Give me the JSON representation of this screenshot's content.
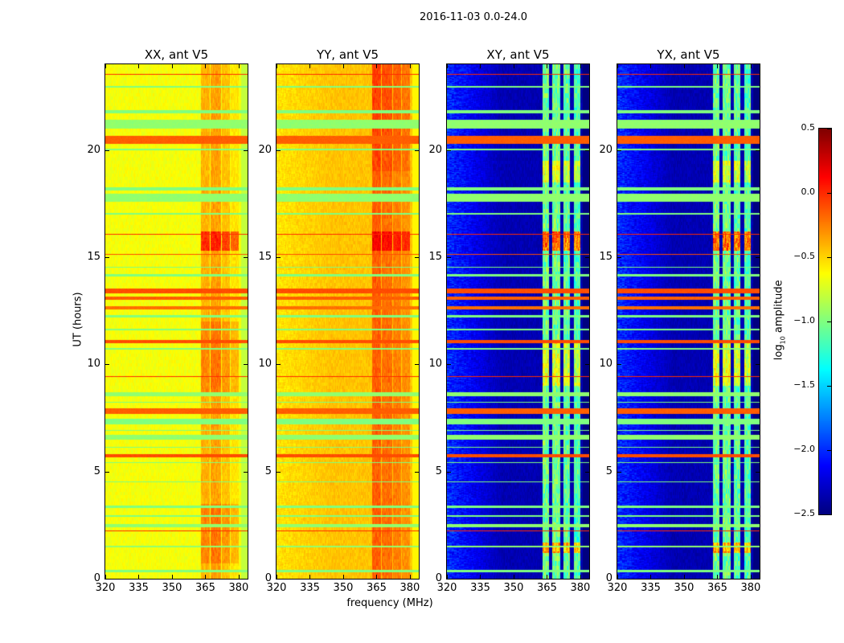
{
  "chart_data": {
    "type": "heatmap",
    "title": "2016-11-03 0.0-24.0",
    "xlabel": "frequency (MHz)",
    "ylabel": "UT (hours)",
    "xlim": [
      320,
      384
    ],
    "ylim": [
      0,
      24
    ],
    "xticks": [
      "320",
      "335",
      "350",
      "365",
      "380"
    ],
    "yticks": [
      "0",
      "5",
      "10",
      "15",
      "20"
    ],
    "colorbar": {
      "label_main": "log",
      "label_sub": "10",
      "label_rest": " amplitude",
      "colormap": "jet",
      "range": [
        -2.5,
        0.5
      ],
      "ticks": [
        "0.5",
        "0.0",
        "−0.5",
        "−1.0",
        "−1.5",
        "−2.0",
        "−2.5"
      ]
    },
    "panels": [
      {
        "title": "XX, ant V5",
        "base_log_amp": -0.65,
        "left_gradient": 0.0,
        "channels": [
          [
            363,
            367,
            0.25
          ],
          [
            367.5,
            372,
            0.3
          ],
          [
            372.5,
            376,
            0.2
          ],
          [
            376.5,
            380,
            0.1
          ]
        ],
        "hot_hours": [
          [
            15.3,
            16.2,
            0.45
          ],
          [
            0.7,
            3.5,
            0.15
          ],
          [
            8.5,
            12,
            0.15
          ]
        ]
      },
      {
        "title": "YY, ant V5",
        "base_log_amp": -0.45,
        "left_gradient": -0.1,
        "channels": [
          [
            363,
            367,
            0.3
          ],
          [
            367.5,
            372,
            0.25
          ],
          [
            372.5,
            376,
            0.2
          ],
          [
            376.5,
            380,
            0.15
          ]
        ],
        "hot_hours": [
          [
            15.3,
            16.2,
            0.35
          ],
          [
            19,
            24,
            0.1
          ]
        ]
      },
      {
        "title": "XY, ant V5",
        "base_log_amp": -2.35,
        "left_gradient": 0.35,
        "channels": [
          [
            363,
            366,
            1.3
          ],
          [
            367.5,
            371,
            1.3
          ],
          [
            372.5,
            375.5,
            1.25
          ],
          [
            377,
            380,
            1.2
          ]
        ],
        "hot_hours": [
          [
            15.3,
            16.2,
            1.0
          ],
          [
            1.2,
            1.7,
            0.8
          ],
          [
            9,
            11,
            0.4
          ],
          [
            18.5,
            19.5,
            0.4
          ]
        ]
      },
      {
        "title": "YX, ant V5",
        "base_log_amp": -2.35,
        "left_gradient": 0.35,
        "channels": [
          [
            363,
            366,
            1.3
          ],
          [
            367.5,
            371,
            1.3
          ],
          [
            372.5,
            375.5,
            1.25
          ],
          [
            377,
            380,
            1.2
          ]
        ],
        "hot_hours": [
          [
            15.3,
            16.2,
            1.0
          ],
          [
            1.2,
            1.7,
            0.8
          ],
          [
            9,
            11,
            0.4
          ],
          [
            18.5,
            19.5,
            0.4
          ]
        ]
      }
    ],
    "flagged_rows_hours_log_amp": [
      [
        23.5,
        23.55,
        0.0
      ],
      [
        22.9,
        23.0,
        -1.0
      ],
      [
        21.7,
        21.85,
        -1.0
      ],
      [
        21.0,
        21.4,
        -0.95
      ],
      [
        20.3,
        20.65,
        -0.15
      ],
      [
        20.0,
        20.08,
        -1.0
      ],
      [
        18.1,
        18.25,
        -1.0
      ],
      [
        17.6,
        17.95,
        -0.95
      ],
      [
        17.0,
        17.05,
        -1.0
      ],
      [
        16.05,
        16.1,
        0.0
      ],
      [
        15.1,
        15.15,
        -0.1
      ],
      [
        14.5,
        14.55,
        -1.0
      ],
      [
        14.1,
        14.2,
        -1.0
      ],
      [
        13.3,
        13.55,
        -0.1
      ],
      [
        13.0,
        13.15,
        -0.15
      ],
      [
        12.55,
        12.7,
        -0.2
      ],
      [
        12.2,
        12.3,
        -1.0
      ],
      [
        11.6,
        11.65,
        -1.0
      ],
      [
        11.0,
        11.15,
        -0.1
      ],
      [
        10.7,
        10.75,
        -1.0
      ],
      [
        9.4,
        9.44,
        0.0
      ],
      [
        8.5,
        8.7,
        -0.95
      ],
      [
        8.2,
        8.25,
        -1.0
      ],
      [
        7.7,
        7.95,
        -0.15
      ],
      [
        7.2,
        7.45,
        -1.0
      ],
      [
        6.9,
        6.95,
        -1.0
      ],
      [
        6.5,
        6.7,
        -0.95
      ],
      [
        6.1,
        6.15,
        -1.0
      ],
      [
        5.65,
        5.8,
        -0.1
      ],
      [
        5.4,
        5.45,
        -1.0
      ],
      [
        4.5,
        4.55,
        -1.0
      ],
      [
        3.3,
        3.4,
        -1.0
      ],
      [
        2.9,
        2.95,
        -1.0
      ],
      [
        2.4,
        2.55,
        -0.95
      ],
      [
        2.2,
        2.25,
        0.0
      ],
      [
        1.45,
        1.55,
        -0.95
      ],
      [
        0.3,
        0.4,
        -1.0
      ]
    ]
  }
}
